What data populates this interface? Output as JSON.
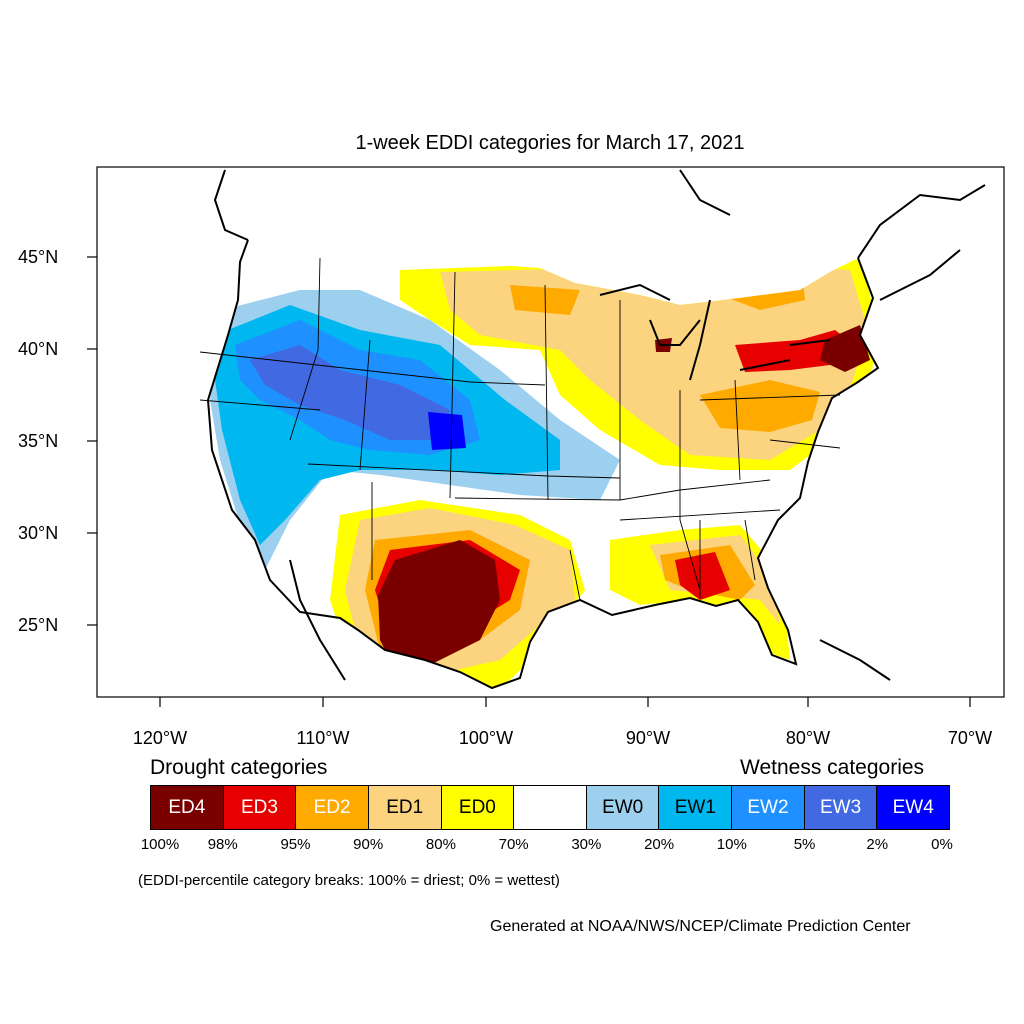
{
  "title": "1-week EDDI categories for March 17, 2021",
  "axes": {
    "lat_labels": [
      "45°N",
      "40°N",
      "35°N",
      "30°N",
      "25°N"
    ],
    "lon_labels": [
      "120°W",
      "110°W",
      "100°W",
      "90°W",
      "80°W",
      "70°W"
    ]
  },
  "legend": {
    "drought_heading": "Drought categories",
    "wetness_heading": "Wetness categories",
    "categories": [
      {
        "label": "ED4",
        "color": "#7a0000",
        "text_color": "#ffffff"
      },
      {
        "label": "ED3",
        "color": "#e60000",
        "text_color": "#ffffff"
      },
      {
        "label": "ED2",
        "color": "#ffaa00",
        "text_color": "#ffffff"
      },
      {
        "label": "ED1",
        "color": "#fcd37f",
        "text_color": "#000000"
      },
      {
        "label": "ED0",
        "color": "#ffff00",
        "text_color": "#000000"
      },
      {
        "label": "",
        "color": "#ffffff",
        "text_color": "#000000"
      },
      {
        "label": "EW0",
        "color": "#9dd0ef",
        "text_color": "#000000"
      },
      {
        "label": "EW1",
        "color": "#00b7f0",
        "text_color": "#000000"
      },
      {
        "label": "EW2",
        "color": "#1e90ff",
        "text_color": "#ffffff"
      },
      {
        "label": "EW3",
        "color": "#4169e1",
        "text_color": "#ffffff"
      },
      {
        "label": "EW4",
        "color": "#0000ff",
        "text_color": "#ffffff"
      }
    ],
    "breaks": [
      "100%",
      "98%",
      "95%",
      "90%",
      "80%",
      "70%",
      "30%",
      "20%",
      "10%",
      "5%",
      "2%",
      "0%"
    ]
  },
  "note": "(EDDI-percentile category breaks: 100% = driest; 0% = wettest)",
  "credit": "Generated at NOAA/NWS/NCEP/Climate Prediction Center"
}
